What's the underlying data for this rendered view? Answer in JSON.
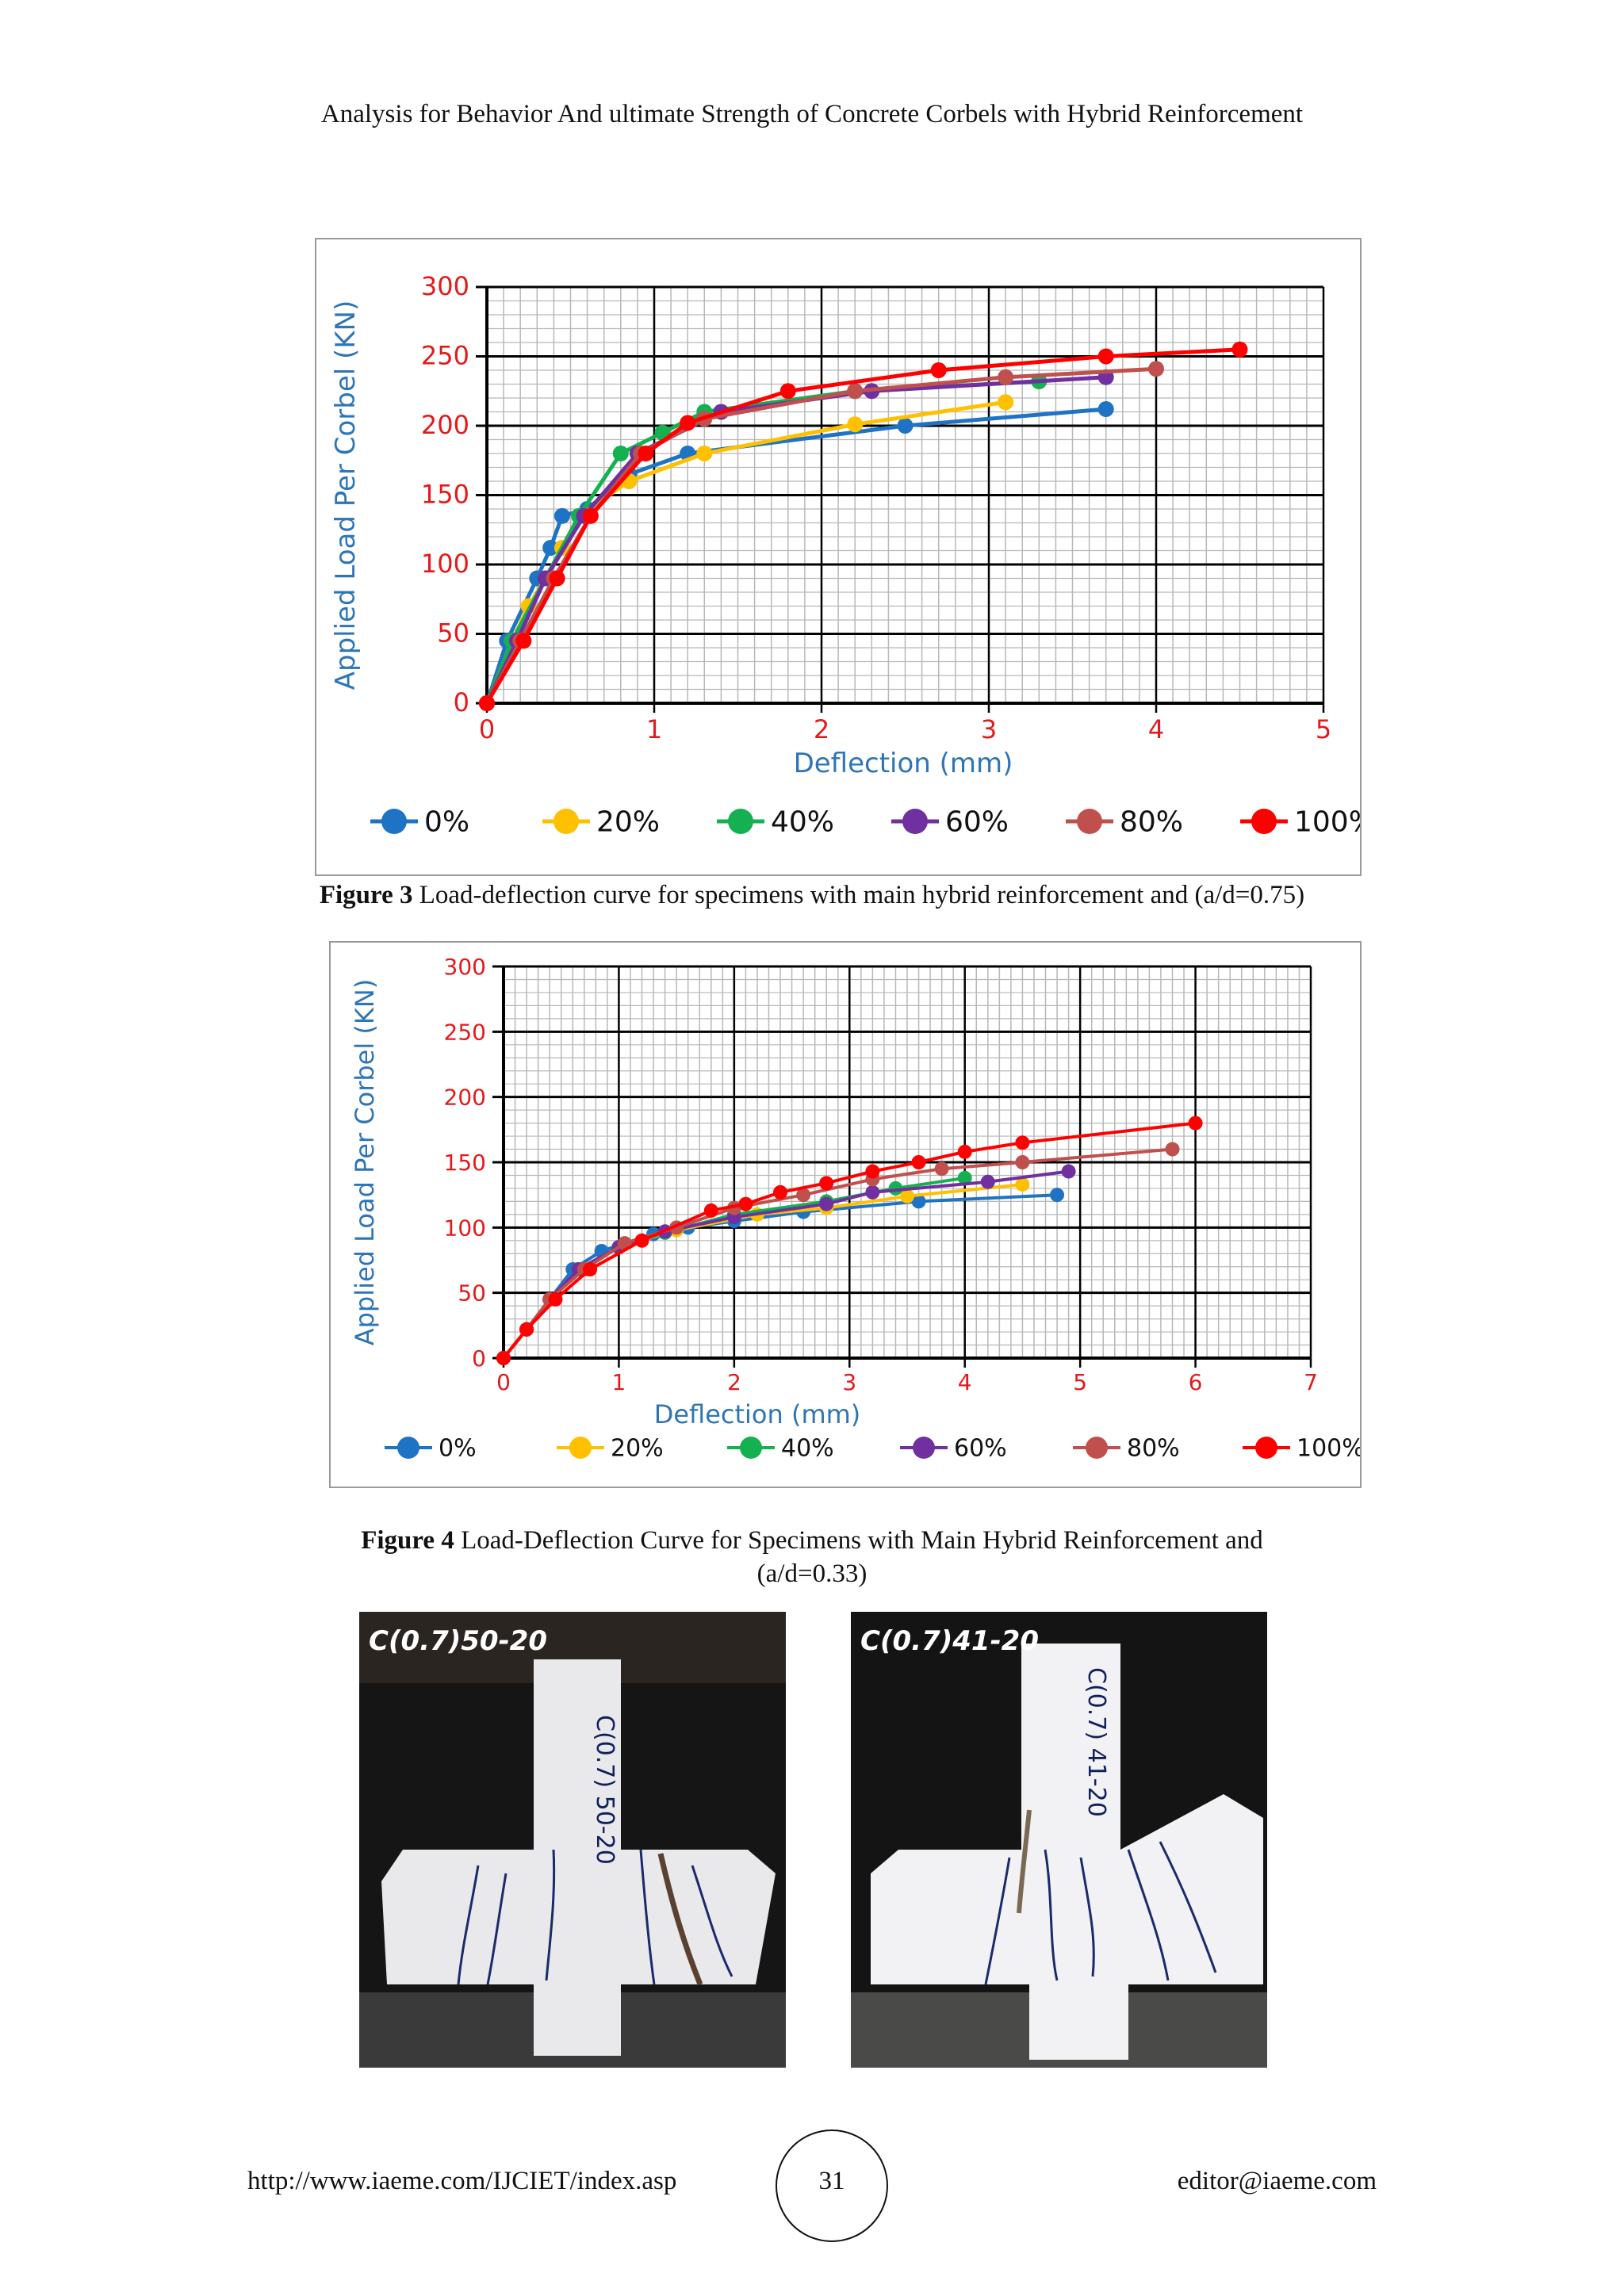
{
  "header": {
    "title": "Analysis for Behavior And ultimate Strength of Concrete Corbels with Hybrid Reinforcement"
  },
  "figures": [
    {
      "label": "Figure 3",
      "caption": " Load-deflection curve for specimens with main hybrid reinforcement and (a/d=0.75)"
    },
    {
      "label": "Figure 4",
      "caption_line1": " Load-Deflection Curve for Specimens with Main Hybrid Reinforcement and",
      "caption_line2": "(a/d=0.33)"
    }
  ],
  "photos": [
    {
      "label": "C(0.7)50-20",
      "specimen_mark": "C(0.7) 50-20"
    },
    {
      "label": "C(0.7)41-20",
      "specimen_mark": "C(0.7) 41-20"
    }
  ],
  "footer": {
    "url": "http://www.iaeme.com/IJCIET/index.asp",
    "page": "31",
    "email": "editor@iaeme.com"
  },
  "colors": {
    "series": [
      "#1f73c4",
      "#ffc000",
      "#15b050",
      "#7030a0",
      "#c0504d",
      "#ff0000"
    ],
    "axis_title": "#2e75b6",
    "tick_label": "#e31a1c"
  },
  "chart_data": [
    {
      "type": "line",
      "title": "",
      "xlabel": "Deflection (mm)",
      "ylabel": "Applied Load Per Corbel (KN)",
      "xlim": [
        0,
        5
      ],
      "ylim": [
        0,
        300
      ],
      "x_ticks": [
        0,
        1,
        2,
        3,
        4,
        5
      ],
      "y_ticks": [
        0,
        50,
        100,
        150,
        200,
        250,
        300
      ],
      "grid": true,
      "legend": "bottom",
      "series": [
        {
          "name": "0%",
          "points": [
            [
              0,
              0
            ],
            [
              0.12,
              45
            ],
            [
              0.3,
              90
            ],
            [
              0.38,
              112
            ],
            [
              0.45,
              135
            ],
            [
              0.6,
              140
            ],
            [
              0.85,
              165
            ],
            [
              1.2,
              180
            ],
            [
              2.5,
              200
            ],
            [
              3.7,
              212
            ]
          ]
        },
        {
          "name": "20%",
          "points": [
            [
              0,
              0
            ],
            [
              0.15,
              45
            ],
            [
              0.25,
              70
            ],
            [
              0.35,
              90
            ],
            [
              0.45,
              112
            ],
            [
              0.55,
              135
            ],
            [
              0.85,
              160
            ],
            [
              1.3,
              180
            ],
            [
              2.2,
              201
            ],
            [
              3.1,
              217
            ]
          ]
        },
        {
          "name": "40%",
          "points": [
            [
              0,
              0
            ],
            [
              0.15,
              45
            ],
            [
              0.35,
              90
            ],
            [
              0.55,
              135
            ],
            [
              0.8,
              180
            ],
            [
              1.05,
              195
            ],
            [
              1.3,
              210
            ],
            [
              2.2,
              225
            ],
            [
              3.3,
              232
            ]
          ]
        },
        {
          "name": "60%",
          "points": [
            [
              0,
              0
            ],
            [
              0.18,
              45
            ],
            [
              0.35,
              90
            ],
            [
              0.58,
              135
            ],
            [
              0.9,
              180
            ],
            [
              1.4,
              210
            ],
            [
              2.3,
              225
            ],
            [
              3.7,
              235
            ]
          ]
        },
        {
          "name": "80%",
          "points": [
            [
              0,
              0
            ],
            [
              0.2,
              45
            ],
            [
              0.4,
              90
            ],
            [
              0.62,
              135
            ],
            [
              0.92,
              180
            ],
            [
              1.3,
              205
            ],
            [
              2.2,
              225
            ],
            [
              3.1,
              235
            ],
            [
              4.0,
              241
            ]
          ]
        },
        {
          "name": "100%",
          "points": [
            [
              0,
              0
            ],
            [
              0.22,
              45
            ],
            [
              0.42,
              90
            ],
            [
              0.62,
              135
            ],
            [
              0.95,
              180
            ],
            [
              1.2,
              202
            ],
            [
              1.8,
              225
            ],
            [
              2.7,
              240
            ],
            [
              3.7,
              250
            ],
            [
              4.5,
              255
            ]
          ]
        }
      ]
    },
    {
      "type": "line",
      "title": "",
      "xlabel": "Deflection (mm)",
      "ylabel": "Applied Load Per Corbel (KN)",
      "xlim": [
        0,
        7
      ],
      "ylim": [
        0,
        300
      ],
      "x_ticks": [
        0,
        1,
        2,
        3,
        4,
        5,
        6,
        7
      ],
      "y_ticks": [
        0,
        50,
        100,
        150,
        200,
        250,
        300
      ],
      "grid": true,
      "legend": "bottom",
      "series": [
        {
          "name": "0%",
          "points": [
            [
              0,
              0
            ],
            [
              0.2,
              22
            ],
            [
              0.4,
              45
            ],
            [
              0.6,
              68
            ],
            [
              0.85,
              82
            ],
            [
              1.3,
              95
            ],
            [
              1.6,
              100
            ],
            [
              2.0,
              105
            ],
            [
              2.6,
              112
            ],
            [
              3.6,
              120
            ],
            [
              4.8,
              125
            ]
          ]
        },
        {
          "name": "20%",
          "points": [
            [
              0,
              0
            ],
            [
              0.2,
              22
            ],
            [
              0.4,
              45
            ],
            [
              0.65,
              68
            ],
            [
              1.0,
              85
            ],
            [
              1.5,
              98
            ],
            [
              2.2,
              110
            ],
            [
              2.8,
              115
            ],
            [
              3.5,
              124
            ],
            [
              4.5,
              133
            ]
          ]
        },
        {
          "name": "40%",
          "points": [
            [
              0,
              0
            ],
            [
              0.2,
              22
            ],
            [
              0.4,
              45
            ],
            [
              0.65,
              68
            ],
            [
              1.0,
              85
            ],
            [
              1.4,
              96
            ],
            [
              2.0,
              110
            ],
            [
              2.8,
              120
            ],
            [
              3.4,
              130
            ],
            [
              4.0,
              138
            ]
          ]
        },
        {
          "name": "60%",
          "points": [
            [
              0,
              0
            ],
            [
              0.2,
              22
            ],
            [
              0.4,
              45
            ],
            [
              0.65,
              68
            ],
            [
              1.0,
              85
            ],
            [
              1.4,
              97
            ],
            [
              2.0,
              108
            ],
            [
              2.8,
              118
            ],
            [
              3.2,
              127
            ],
            [
              4.2,
              135
            ],
            [
              4.9,
              143
            ]
          ]
        },
        {
          "name": "80%",
          "points": [
            [
              0,
              0
            ],
            [
              0.2,
              22
            ],
            [
              0.4,
              45
            ],
            [
              0.7,
              68
            ],
            [
              1.05,
              88
            ],
            [
              1.5,
              100
            ],
            [
              2.0,
              115
            ],
            [
              2.6,
              125
            ],
            [
              3.2,
              137
            ],
            [
              3.8,
              145
            ],
            [
              4.5,
              150
            ],
            [
              5.8,
              160
            ]
          ]
        },
        {
          "name": "100%",
          "points": [
            [
              0,
              0
            ],
            [
              0.2,
              22
            ],
            [
              0.45,
              45
            ],
            [
              0.75,
              68
            ],
            [
              1.2,
              90
            ],
            [
              1.8,
              113
            ],
            [
              2.1,
              118
            ],
            [
              2.4,
              127
            ],
            [
              2.8,
              134
            ],
            [
              3.2,
              143
            ],
            [
              3.6,
              150
            ],
            [
              4.0,
              158
            ],
            [
              4.5,
              165
            ],
            [
              6.0,
              180
            ]
          ]
        }
      ]
    }
  ]
}
